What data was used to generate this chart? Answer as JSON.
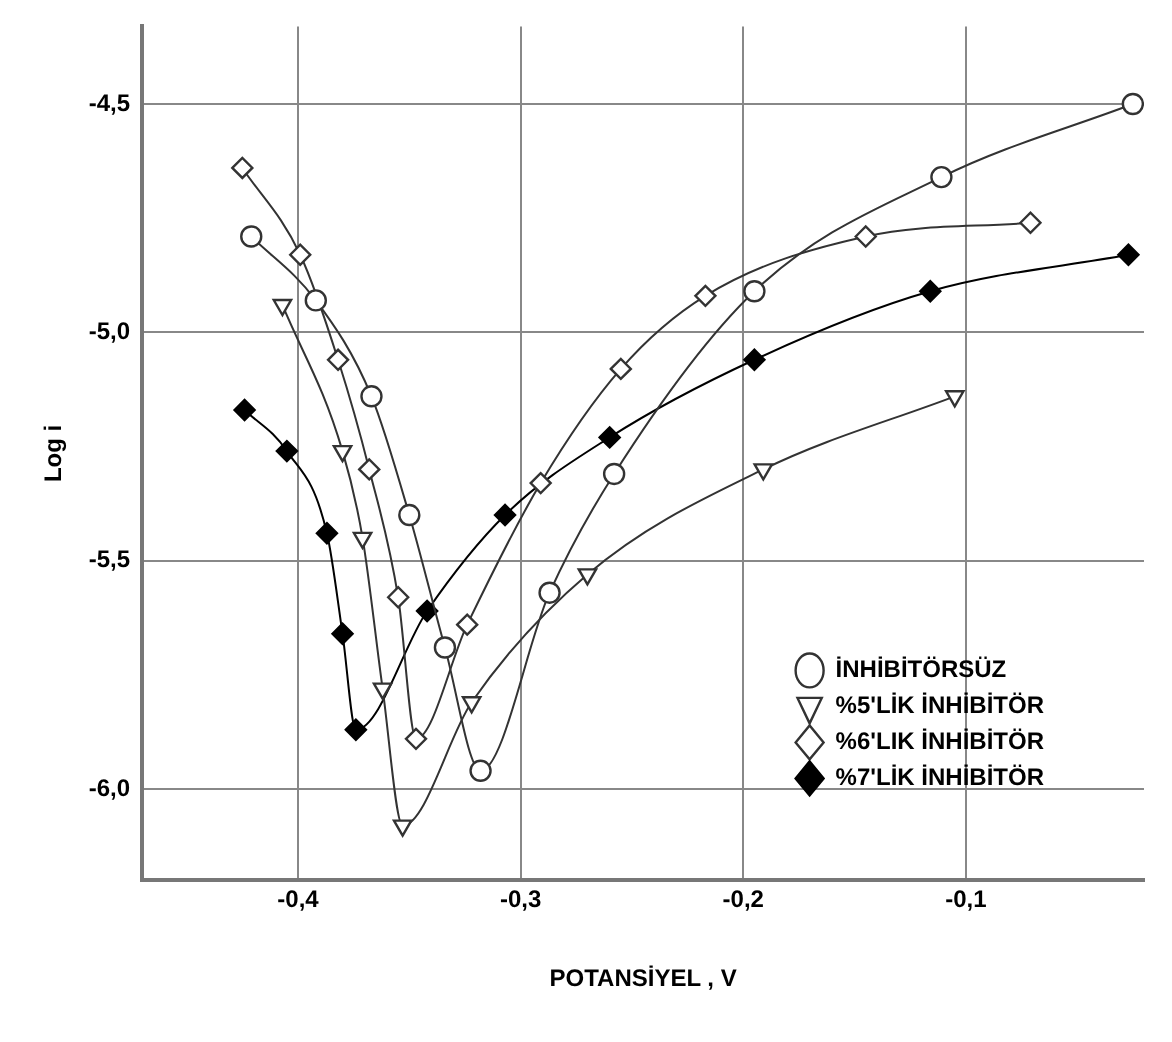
{
  "chart_data": {
    "type": "line",
    "xlabel": "POTANSİYEL , V",
    "ylabel": "Log i",
    "xlim": [
      -0.47,
      -0.02
    ],
    "ylim": [
      -6.2,
      -4.33
    ],
    "xticks": [
      {
        "value": -0.4,
        "label": "-0,4"
      },
      {
        "value": -0.3,
        "label": "-0,3"
      },
      {
        "value": -0.2,
        "label": "-0,2"
      },
      {
        "value": -0.1,
        "label": "-0,1"
      }
    ],
    "yticks": [
      {
        "value": -6,
        "label": "-6,0"
      },
      {
        "value": -5.5,
        "label": "-5,5"
      },
      {
        "value": -5,
        "label": "-5,0"
      },
      {
        "value": -4.5,
        "label": "-4,5"
      }
    ],
    "grid": true,
    "legend": "bottom right",
    "line_style": "solid",
    "series": [
      {
        "name": "İNHİBİTÖRSÜZ",
        "color": "#333333",
        "marker": "circle",
        "x": [
          -0.421,
          -0.392,
          -0.367,
          -0.35,
          -0.334,
          -0.318,
          -0.287,
          -0.258,
          -0.195,
          -0.111,
          -0.025
        ],
        "values": [
          -4.79,
          -4.93,
          -5.14,
          -5.4,
          -5.69,
          -5.96,
          -5.57,
          -5.31,
          -4.91,
          -4.66,
          -4.5
        ]
      },
      {
        "name": "%5'LİK İNHİBİTÖR",
        "color": "#333333",
        "marker": "triangle",
        "x": [
          -0.407,
          -0.38,
          -0.371,
          -0.362,
          -0.353,
          -0.322,
          -0.27,
          -0.191,
          -0.105
        ],
        "values": [
          -4.94,
          -5.26,
          -5.45,
          -5.78,
          -6.08,
          -5.81,
          -5.53,
          -5.3,
          -5.14
        ]
      },
      {
        "name": "%6'LIK İNHİBİTÖR",
        "color": "#333333",
        "marker": "diamond",
        "x": [
          -0.425,
          -0.399,
          -0.382,
          -0.368,
          -0.355,
          -0.347,
          -0.324,
          -0.291,
          -0.255,
          -0.217,
          -0.145,
          -0.071
        ],
        "values": [
          -4.64,
          -4.83,
          -5.06,
          -5.3,
          -5.58,
          -5.89,
          -5.64,
          -5.33,
          -5.08,
          -4.92,
          -4.79,
          -4.76
        ]
      },
      {
        "name": "%7'LİK İNHİBİTÖR",
        "color": "#000000",
        "marker": "diamond",
        "x": [
          -0.424,
          -0.405,
          -0.387,
          -0.38,
          -0.374,
          -0.342,
          -0.307,
          -0.26,
          -0.195,
          -0.116,
          -0.027
        ],
        "values": [
          -5.17,
          -5.26,
          -5.44,
          -5.66,
          -5.87,
          -5.61,
          -5.4,
          -5.23,
          -5.06,
          -4.91,
          -4.83
        ]
      }
    ]
  }
}
